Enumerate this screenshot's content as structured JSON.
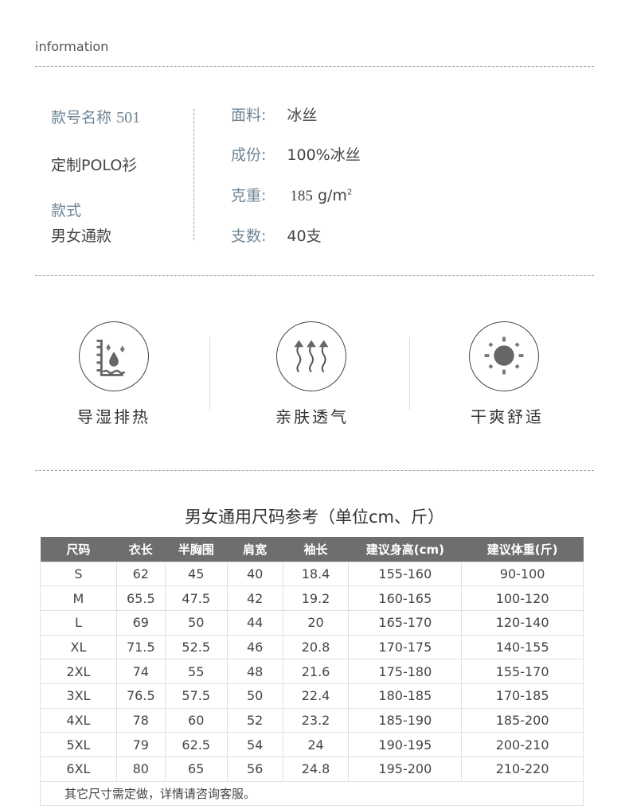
{
  "header": {
    "label": "information"
  },
  "spec": {
    "model_label": "款号名称",
    "model_value": "501",
    "product": "定制POLO衫",
    "style_label": "款式",
    "style_value": "男女通款",
    "rows": [
      {
        "label": "面料:",
        "value": "冰丝"
      },
      {
        "label": "成份:",
        "value": "100%冰丝"
      },
      {
        "label": "克重:",
        "value": "185",
        "unit": "g/m",
        "sup": "2"
      },
      {
        "label": "支数:",
        "value": "40支"
      }
    ]
  },
  "features": [
    {
      "icon": "moisture-wicking-icon",
      "label": "导湿排热"
    },
    {
      "icon": "breathable-icon",
      "label": "亲肤透气"
    },
    {
      "icon": "sun-dry-icon",
      "label": "干爽舒适"
    }
  ],
  "size_chart": {
    "title": "男女通用尺码参考（单位cm、斤）",
    "header_color": "#6e6e6e",
    "columns": [
      "尺码",
      "衣长",
      "半胸围",
      "肩宽",
      "袖长",
      "建议身高(cm)",
      "建议体重(斤)"
    ],
    "rows": [
      [
        "S",
        "62",
        "45",
        "40",
        "18.4",
        "155-160",
        "90-100"
      ],
      [
        "M",
        "65.5",
        "47.5",
        "42",
        "19.2",
        "160-165",
        "100-120"
      ],
      [
        "L",
        "69",
        "50",
        "44",
        "20",
        "165-170",
        "120-140"
      ],
      [
        "XL",
        "71.5",
        "52.5",
        "46",
        "20.8",
        "170-175",
        "140-155"
      ],
      [
        "2XL",
        "74",
        "55",
        "48",
        "21.6",
        "175-180",
        "155-170"
      ],
      [
        "3XL",
        "76.5",
        "57.5",
        "50",
        "22.4",
        "180-185",
        "170-185"
      ],
      [
        "4XL",
        "78",
        "60",
        "52",
        "23.2",
        "185-190",
        "185-200"
      ],
      [
        "5XL",
        "79",
        "62.5",
        "54",
        "24",
        "190-195",
        "200-210"
      ],
      [
        "6XL",
        "80",
        "65",
        "56",
        "24.8",
        "195-200",
        "210-220"
      ]
    ],
    "note": "其它尺寸需定做，详情请咨询客服。"
  }
}
